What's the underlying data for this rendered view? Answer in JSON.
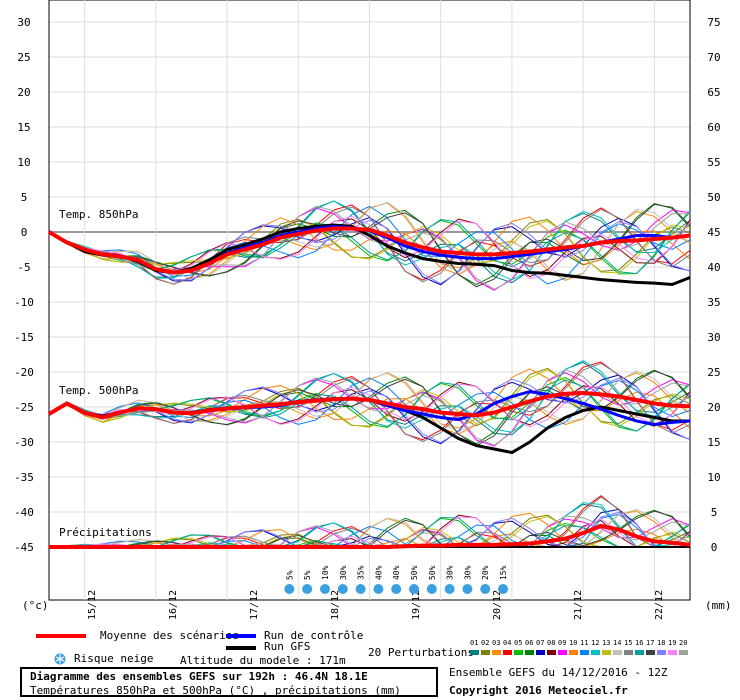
{
  "chart_data": {
    "type": "line",
    "title": "Diagramme des ensembles GEFS sur 192h : 46.4N 18.1E",
    "subtitle": "Températures 850hPa et 500hPa (°C) , précipitations (mm)",
    "left_axis_unit": "(°c)",
    "right_axis_unit": "(mm)",
    "left_ticks": [
      30,
      25,
      20,
      15,
      10,
      5,
      0,
      -5,
      -10,
      -15,
      -20,
      -25,
      -30,
      -35,
      -40,
      -45
    ],
    "right_ticks": [
      75,
      70,
      65,
      60,
      55,
      50,
      45,
      40,
      35,
      30,
      25,
      20,
      15,
      10,
      5,
      0
    ],
    "ylim": [
      -45,
      30
    ],
    "dates": [
      "15/12",
      "16/12",
      "17/12",
      "18/12",
      "19/12",
      "20/12",
      "21/12",
      "22/12"
    ],
    "panel_labels": [
      "Temp. 850hPa",
      "Temp. 500hPa",
      "Précipitations"
    ],
    "snow_risk": [
      {
        "step": 24,
        "value": "5%"
      },
      {
        "step": 26,
        "value": "5%"
      },
      {
        "step": 28,
        "value": "10%"
      },
      {
        "step": 30,
        "value": "30%"
      },
      {
        "step": 32,
        "value": "35%"
      },
      {
        "step": 34,
        "value": "40%"
      },
      {
        "step": 36,
        "value": "40%"
      },
      {
        "step": 38,
        "value": "50%"
      },
      {
        "step": 40,
        "value": "50%"
      },
      {
        "step": 42,
        "value": "30%"
      },
      {
        "step": 44,
        "value": "30%"
      },
      {
        "step": 46,
        "value": "20%"
      },
      {
        "step": 48,
        "value": "15%"
      }
    ],
    "t850": {
      "mean": [
        0,
        -1.5,
        -2.5,
        -3.2,
        -3.5,
        -4,
        -5.3,
        -5.8,
        -5.5,
        -4.5,
        -3.2,
        -2.5,
        -1.8,
        -0.8,
        -0.3,
        0.2,
        0.5,
        0.5,
        0.3,
        -0.5,
        -1.5,
        -2.2,
        -2.8,
        -3,
        -3.2,
        -3.2,
        -3,
        -2.8,
        -2.5,
        -2.2,
        -2,
        -1.5,
        -1.3,
        -1.2,
        -1,
        -0.8,
        -0.5
      ],
      "control": [
        0,
        -1.5,
        -2.5,
        -3.2,
        -3.5,
        -4,
        -5.3,
        -5.8,
        -5.5,
        -4.5,
        -3,
        -2.2,
        -1.5,
        -0.5,
        0,
        0.5,
        0.8,
        0.6,
        0.2,
        -0.8,
        -2,
        -2.8,
        -3.3,
        -3.6,
        -3.8,
        -3.8,
        -3.5,
        -3.2,
        -2.8,
        -2.5,
        -2,
        -1.5,
        -1,
        -0.5,
        -0.5,
        -0.8,
        -0.5
      ],
      "gfs": [
        0,
        -1.5,
        -2.8,
        -3.3,
        -3.5,
        -4.2,
        -5.5,
        -5.8,
        -5.2,
        -4,
        -2.5,
        -1.8,
        -1,
        0,
        0.5,
        0.8,
        1,
        0.8,
        -0.5,
        -2,
        -3,
        -3.8,
        -4.2,
        -4.5,
        -4.6,
        -4.8,
        -5.5,
        -5.8,
        -5.9,
        -6.2,
        -6.5,
        -6.8,
        -7,
        -7.2,
        -7.3,
        -7.5,
        -6.5
      ]
    },
    "t500": {
      "mean": [
        -26,
        -24.5,
        -25.8,
        -26.5,
        -25.8,
        -25.2,
        -25.3,
        -25.8,
        -25.9,
        -25.5,
        -25.2,
        -25,
        -24.8,
        -24.6,
        -24.3,
        -24.1,
        -23.9,
        -23.8,
        -24,
        -24.5,
        -25,
        -25.3,
        -25.8,
        -26,
        -26.2,
        -25.8,
        -25,
        -24.2,
        -23.5,
        -23.1,
        -23,
        -23.2,
        -23.5,
        -24,
        -24.5,
        -24.8,
        -24.9
      ],
      "control": [
        -26,
        -24.5,
        -25.8,
        -26.5,
        -25.8,
        -25.2,
        -25.3,
        -25.8,
        -25.9,
        -25.5,
        -25.3,
        -25.1,
        -25,
        -24.8,
        -24.3,
        -24,
        -23.8,
        -23.8,
        -24,
        -24.8,
        -25.5,
        -26,
        -26.5,
        -26.8,
        -26,
        -24.5,
        -23.5,
        -22.8,
        -23.2,
        -23.8,
        -24.5,
        -25.3,
        -26.2,
        -27,
        -27.5,
        -27.2,
        -27
      ]
    },
    "t500_gfs": [
      -26,
      -24.5,
      -25.8,
      -26.3,
      -25.8,
      -25.2,
      -25.3,
      -25.8,
      -25.8,
      -25.4,
      -25.2,
      -25,
      -24.8,
      -24.6,
      -24.2,
      -24,
      -23.9,
      -23.8,
      -24,
      -24.8,
      -25.5,
      -26.5,
      -28,
      -29.5,
      -30.5,
      -31,
      -31.5,
      -30,
      -28,
      -26.5,
      -25.5,
      -25,
      -25.5,
      -26,
      -26.5,
      -27,
      -27
    ],
    "precip": {
      "mean": [
        0,
        0,
        0,
        0,
        0,
        0,
        0,
        0,
        0,
        0,
        0,
        0,
        0,
        0,
        0,
        0,
        0,
        0,
        0,
        0,
        0.1,
        0.2,
        0.2,
        0.3,
        0.3,
        0.3,
        0.4,
        0.5,
        0.8,
        1.2,
        2,
        3,
        2.5,
        1.5,
        0.8,
        0.6,
        0.3
      ],
      "gfs": [
        0,
        0,
        0,
        0,
        0,
        0,
        0,
        0,
        0,
        0,
        0,
        0,
        0,
        0,
        0,
        0,
        0,
        0,
        0,
        0,
        0,
        0,
        0,
        0,
        0,
        0,
        0,
        0,
        0,
        0,
        0,
        0,
        0,
        0,
        0,
        0,
        0
      ]
    },
    "perturbation_count": 20,
    "perturbation_ids": [
      "01",
      "02",
      "03",
      "04",
      "05",
      "06",
      "07",
      "08",
      "09",
      "10",
      "11",
      "12",
      "13",
      "14",
      "15",
      "16",
      "17",
      "18",
      "19",
      "20"
    ],
    "perturbation_colors": [
      "#008080",
      "#808000",
      "#ff8c00",
      "#ff0000",
      "#00c000",
      "#008000",
      "#0000c0",
      "#800000",
      "#ff00ff",
      "#ff8000",
      "#0080ff",
      "#00c0c0",
      "#c0c000",
      "#c0c0c0",
      "#808080",
      "#00a0a0",
      "#404040",
      "#8080ff",
      "#ff80ff",
      "#a0a0a0"
    ]
  },
  "legend": {
    "mean_label": "Moyenne des scénarios",
    "control_label": "Run de contrôle",
    "gfs_label": "Run GFS",
    "snow_label": "Risque neige",
    "altitude_label": "Altitude du modele : 171m",
    "perturbations_label": "20 Perturbations",
    "ensemble_label": "Ensemble GEFS du 14/12/2016 - 12Z",
    "copyright": "Copyright 2016 Meteociel.fr",
    "mean_color": "#ff0000",
    "control_color": "#0000ff",
    "gfs_color": "#000000"
  }
}
